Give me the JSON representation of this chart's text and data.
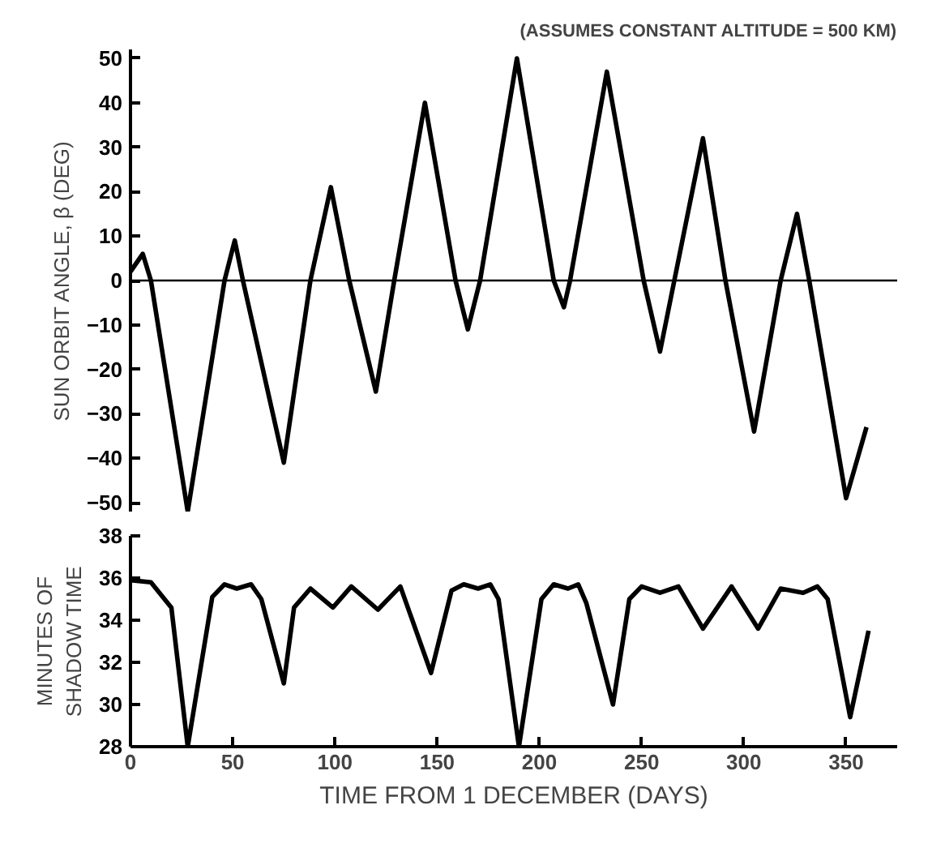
{
  "chart_data": [
    {
      "type": "line",
      "title": "(ASSUMES CONSTANT ALTITUDE = 500 KM)",
      "ylabel": "SUN ORBIT ANGLE, β (DEG)",
      "x": [
        0,
        6,
        10,
        28,
        46,
        51,
        55,
        75,
        88,
        98,
        107,
        120,
        129,
        144,
        159,
        165,
        171,
        189,
        207,
        212,
        215,
        233,
        251,
        259,
        266,
        280,
        291,
        305,
        318,
        326,
        332,
        350,
        360
      ],
      "series": [
        {
          "color": "#000000",
          "values": [
            2,
            6,
            0,
            -52,
            0,
            9,
            0,
            -41,
            0,
            21,
            0,
            -25,
            0,
            40,
            0,
            -11,
            0,
            50,
            0,
            -6,
            0,
            47,
            0,
            -16,
            0,
            32,
            0,
            -34,
            0,
            15,
            0,
            -49,
            -33
          ]
        }
      ],
      "xlim": [
        0,
        375
      ],
      "ylim": [
        -52,
        52
      ],
      "yticks": [
        -50,
        -40,
        -30,
        -20,
        -10,
        0,
        10,
        20,
        30,
        40,
        50
      ],
      "ref_lines": [
        {
          "axis": "y",
          "value": 0,
          "color": "#000000"
        }
      ],
      "tick_labels": "y"
    },
    {
      "type": "line",
      "ylabel": "MINUTES OF SHADOW TIME",
      "xlabel": "TIME FROM 1 DECEMBER (DAYS)",
      "x": [
        0,
        10,
        20,
        28,
        40,
        46,
        52,
        59,
        64,
        75,
        80,
        88,
        99,
        108,
        121,
        132,
        147,
        157,
        163,
        170,
        176,
        180,
        190,
        201,
        207,
        214,
        219,
        223,
        236,
        244,
        250,
        259,
        268,
        280,
        294,
        307,
        318,
        329,
        336,
        341,
        352,
        361
      ],
      "series": [
        {
          "color": "#000000",
          "values": [
            35.9,
            35.8,
            34.6,
            28,
            35.1,
            35.7,
            35.5,
            35.7,
            35,
            31,
            34.6,
            35.5,
            34.6,
            35.6,
            34.5,
            35.6,
            31.5,
            35.4,
            35.7,
            35.5,
            35.7,
            35,
            28,
            35,
            35.7,
            35.5,
            35.7,
            34.8,
            30,
            35,
            35.6,
            35.3,
            35.6,
            33.6,
            35.6,
            33.6,
            35.5,
            35.3,
            35.6,
            35,
            29.4,
            33.5
          ]
        }
      ],
      "xlim": [
        0,
        375
      ],
      "ylim": [
        28,
        38
      ],
      "xticks": [
        0,
        50,
        100,
        150,
        200,
        250,
        300,
        350
      ],
      "yticks": [
        28,
        30,
        32,
        34,
        36,
        38
      ]
    }
  ]
}
